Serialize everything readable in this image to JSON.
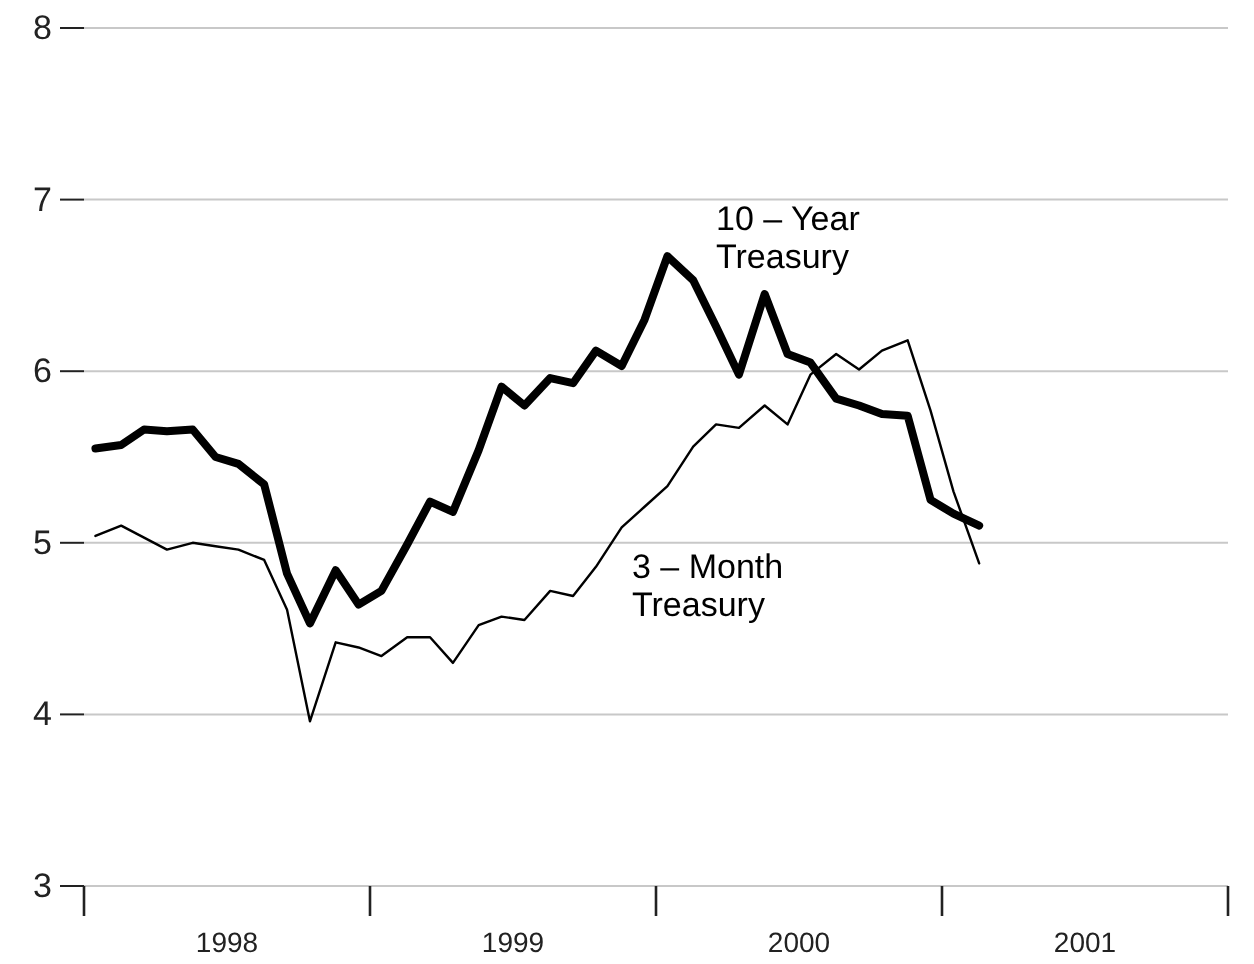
{
  "chart_data": {
    "type": "line",
    "x": [
      1998.04,
      1998.13,
      1998.21,
      1998.29,
      1998.38,
      1998.46,
      1998.54,
      1998.63,
      1998.71,
      1998.79,
      1998.88,
      1998.96,
      1999.04,
      1999.13,
      1999.21,
      1999.29,
      1999.38,
      1999.46,
      1999.54,
      1999.63,
      1999.71,
      1999.79,
      1999.88,
      1999.96,
      2000.04,
      2000.13,
      2000.21,
      2000.29,
      2000.38,
      2000.46,
      2000.54,
      2000.63,
      2000.71,
      2000.79,
      2000.88,
      2000.96,
      2001.04,
      2001.13
    ],
    "series": [
      {
        "name": "10 – Year Treasury",
        "color": "#000000",
        "values": [
          5.55,
          5.57,
          5.66,
          5.65,
          5.66,
          5.5,
          5.46,
          5.34,
          4.82,
          4.53,
          4.84,
          4.64,
          4.72,
          4.99,
          5.24,
          5.18,
          5.54,
          5.91,
          5.8,
          5.96,
          5.93,
          6.12,
          6.03,
          6.3,
          6.67,
          6.53,
          6.26,
          5.98,
          6.45,
          6.1,
          6.05,
          5.84,
          5.8,
          5.75,
          5.74,
          5.25,
          5.17,
          5.1
        ]
      },
      {
        "name": "3 – Month Treasury",
        "color": "#000000",
        "values": [
          5.04,
          5.1,
          5.03,
          4.96,
          5.0,
          4.98,
          4.96,
          4.9,
          4.61,
          3.96,
          4.42,
          4.39,
          4.34,
          4.45,
          4.45,
          4.3,
          4.52,
          4.57,
          4.55,
          4.72,
          4.69,
          4.86,
          5.09,
          5.21,
          5.33,
          5.56,
          5.69,
          5.67,
          5.8,
          5.69,
          5.98,
          6.1,
          6.01,
          6.12,
          6.18,
          5.77,
          5.3,
          4.88
        ]
      }
    ],
    "xlim": [
      1998,
      2002
    ],
    "xticks": [
      {
        "value": 1998,
        "label": null
      },
      {
        "value": 1998.5,
        "label": "1998"
      },
      {
        "value": 1999,
        "label": null
      },
      {
        "value": 1999.5,
        "label": "1999"
      },
      {
        "value": 2000,
        "label": null
      },
      {
        "value": 2000.5,
        "label": "2000"
      },
      {
        "value": 2001,
        "label": null
      },
      {
        "value": 2001.5,
        "label": "2001"
      },
      {
        "value": 2002,
        "label": null
      }
    ],
    "ylim": [
      3,
      8
    ],
    "yticks": [
      3,
      4,
      5,
      6,
      7,
      8
    ],
    "grid": "y"
  }
}
